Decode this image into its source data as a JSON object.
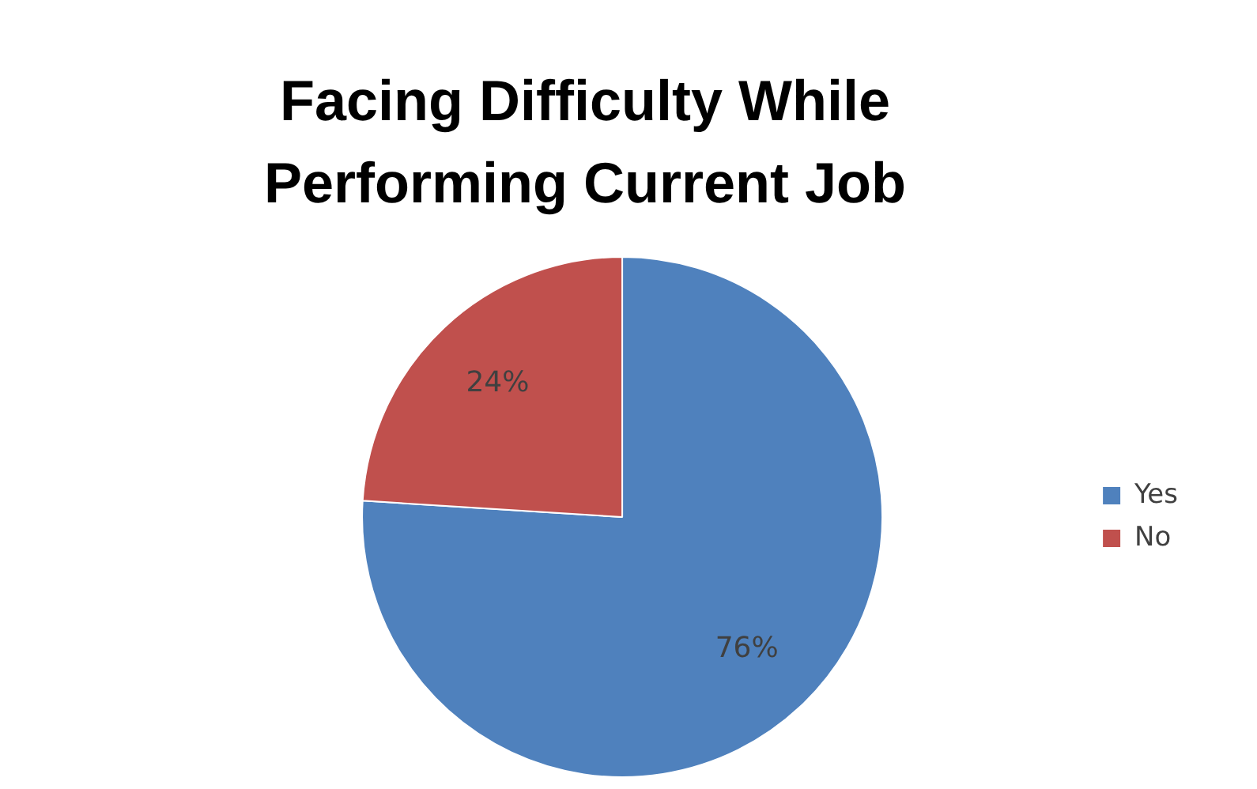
{
  "chart_data": {
    "type": "pie",
    "title": "Facing Difficulty While Performing Current Job",
    "categories": [
      "Yes",
      "No"
    ],
    "values": [
      76,
      24
    ],
    "colors": [
      "#4f81bd",
      "#c0504d"
    ],
    "value_labels": [
      "76%",
      "24%"
    ],
    "legend": "right"
  }
}
